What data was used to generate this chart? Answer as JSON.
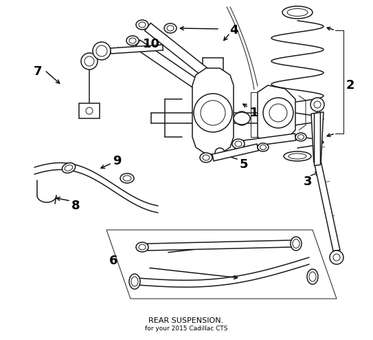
{
  "title": "REAR SUSPENSION.",
  "subtitle": "for your 2015 Cadillac CTS",
  "background_color": "#ffffff",
  "line_color": "#1a1a1a",
  "label_color": "#000000",
  "title_fontsize": 8,
  "label_fontsize": 13,
  "fig_width": 5.43,
  "fig_height": 4.94,
  "dpi": 100
}
